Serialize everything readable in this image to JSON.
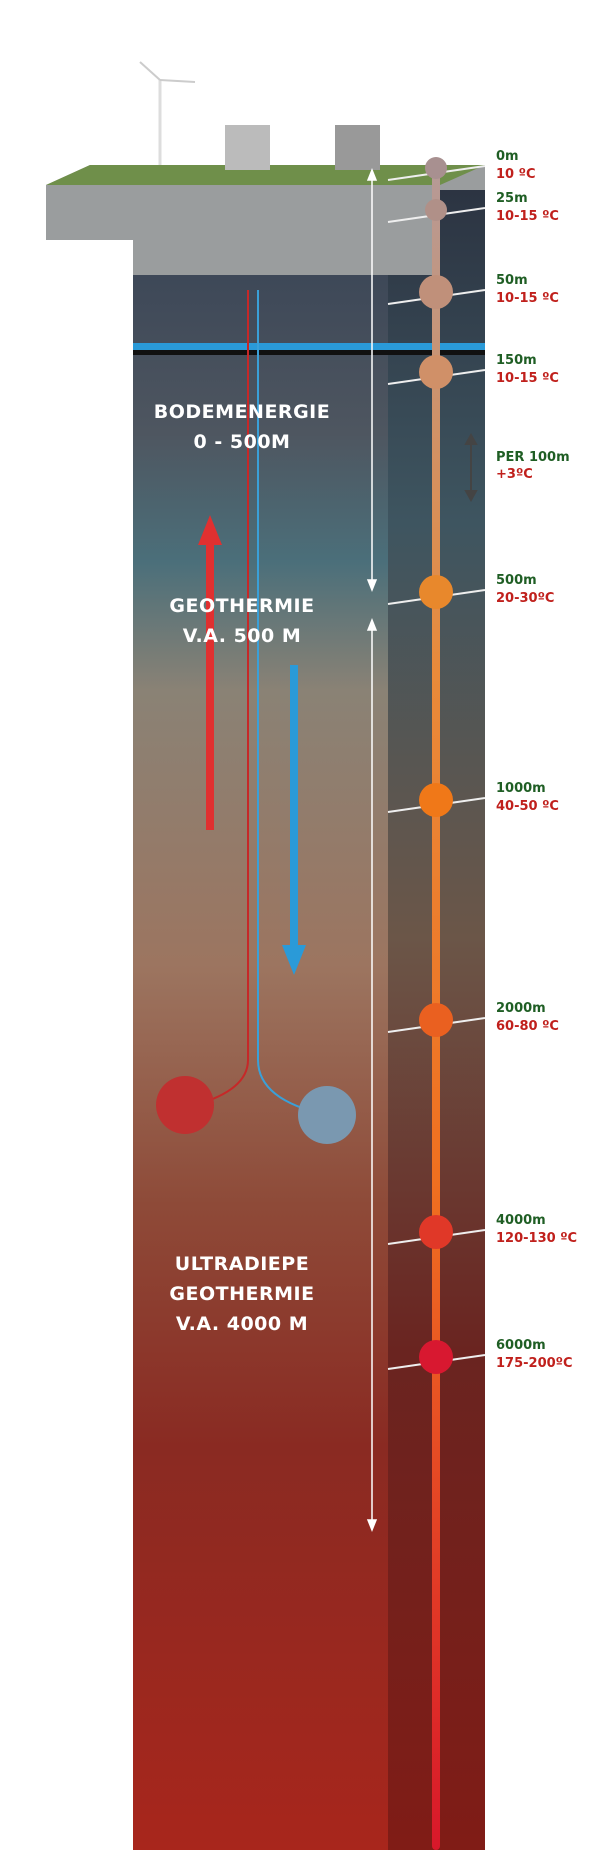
{
  "zones": [
    {
      "lines": [
        "BODEMENERGIE",
        "0 - 500M"
      ]
    },
    {
      "lines": [
        "GEOTHERMIE",
        "V.A. 500 M"
      ]
    },
    {
      "lines": [
        "ULTRADIEPE",
        "GEOTHERMIE",
        "V.A. 4000 M"
      ]
    }
  ],
  "markers": [
    {
      "depth": "0m",
      "temperature": "10 ºC"
    },
    {
      "depth": "25m",
      "temperature": "10-15 ºC"
    },
    {
      "depth": "50m",
      "temperature": "10-15 ºC"
    },
    {
      "depth": "150m",
      "temperature": "10-15 ºC"
    },
    {
      "depth": "500m",
      "temperature": "20-30ºC"
    },
    {
      "depth": "1000m",
      "temperature": "40-50 ºC"
    },
    {
      "depth": "2000m",
      "temperature": "60-80 ºC"
    },
    {
      "depth": "4000m",
      "temperature": "120-130 ºC"
    },
    {
      "depth": "6000m",
      "temperature": "175-200ºC"
    }
  ],
  "gradient": {
    "label": "PER 100m",
    "value": "+3ºC"
  }
}
